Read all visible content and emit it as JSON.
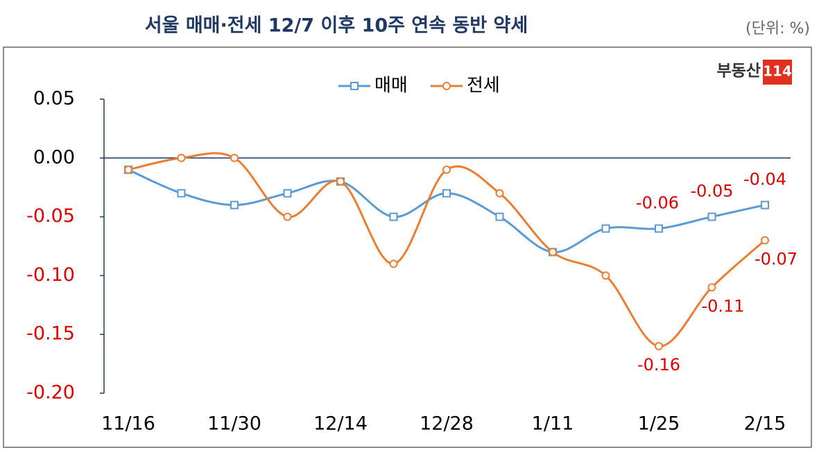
{
  "chart_data": {
    "type": "line",
    "title": "서울 매매·전세 12/7 이후 10주 연속 동반 약세",
    "unit": "(단위: %)",
    "logo": {
      "text": "부동산",
      "badge": "114"
    },
    "categories": [
      "11/16",
      null,
      "11/30",
      null,
      "12/14",
      null,
      "12/28",
      null,
      "1/11",
      null,
      "1/25",
      null,
      "2/15"
    ],
    "series": [
      {
        "name": "매매",
        "color": "#5b9bd5",
        "marker": "square",
        "values": [
          -0.01,
          -0.03,
          -0.04,
          -0.03,
          -0.02,
          -0.05,
          -0.03,
          -0.05,
          -0.08,
          -0.06,
          -0.06,
          -0.05,
          -0.04
        ],
        "value_labels": [
          null,
          null,
          null,
          null,
          null,
          null,
          null,
          null,
          null,
          null,
          "-0.06",
          "-0.05",
          "-0.04"
        ]
      },
      {
        "name": "전세",
        "color": "#ed7d31",
        "marker": "circle",
        "values": [
          -0.01,
          0.0,
          0.0,
          -0.05,
          -0.02,
          -0.09,
          -0.01,
          -0.03,
          -0.08,
          -0.1,
          -0.16,
          -0.11,
          -0.07
        ],
        "value_labels": [
          null,
          null,
          null,
          null,
          null,
          null,
          null,
          null,
          null,
          null,
          "-0.16",
          "-0.11",
          "-0.07"
        ]
      }
    ],
    "ylim": [
      -0.2,
      0.05
    ],
    "yticks": [
      {
        "value": 0.05,
        "label": "0.05"
      },
      {
        "value": 0,
        "label": "0.00"
      },
      {
        "value": -0.05,
        "label": "-0.05"
      },
      {
        "value": -0.1,
        "label": "-0.10"
      },
      {
        "value": -0.15,
        "label": "-0.15"
      },
      {
        "value": -0.2,
        "label": "-0.20"
      }
    ],
    "smooth": true,
    "negative_color": "#e00000",
    "data_label_color": "#e00000"
  }
}
